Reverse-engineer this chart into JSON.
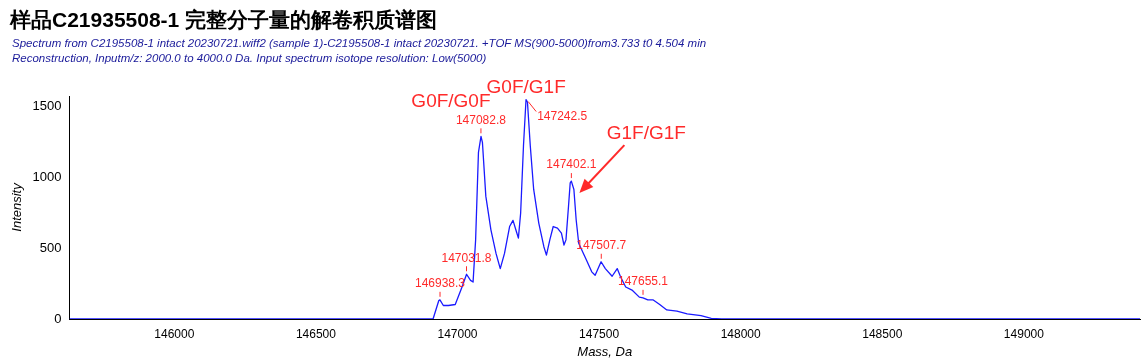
{
  "chart_data": {
    "type": "line",
    "title": "样品C21935508-1 完整分子量的解卷积质谱图",
    "subtitle": "Spectrum from C2195508-1 intact 20230721.wiff2 (sample 1)-C2195508-1 intact 20230721. +TOF MS(900-5000)from3.733 t0 4.504 min\nReconstruction, Inputm/z: 2000.0 to 4000.0 Da. Input spectrum isotope resolution: Low(5000)",
    "xlabel": "Mass, Da",
    "ylabel": "Intensity",
    "x": [
      145630,
      146877,
      146914,
      146934,
      146938,
      146950,
      146968,
      146992,
      147016,
      147032,
      147046,
      147055,
      147064,
      147074,
      147083,
      147088,
      147100,
      147118,
      147136,
      147151,
      147166,
      147184,
      147196,
      147206,
      147215,
      147223,
      147233,
      147242,
      147247,
      147257,
      147269,
      147287,
      147305,
      147314,
      147326,
      147338,
      147353,
      147367,
      147376,
      147383,
      147392,
      147398,
      147402,
      147411,
      147419,
      147428,
      147450,
      147474,
      147486,
      147507,
      147522,
      147546,
      147564,
      147576,
      147594,
      147618,
      147642,
      147655,
      147672,
      147690,
      147714,
      147739,
      147775,
      147811,
      147860,
      147896,
      147932,
      149410
    ],
    "series": [
      {
        "color": "#1a1aff",
        "values": [
          0,
          0,
          2,
          130,
          135,
          95,
          95,
          102,
          225,
          315,
          272,
          260,
          557,
          1173,
          1286,
          1244,
          865,
          628,
          462,
          355,
          462,
          651,
          694,
          628,
          569,
          746,
          1220,
          1545,
          1528,
          1220,
          912,
          675,
          509,
          450,
          557,
          651,
          640,
          604,
          521,
          557,
          794,
          959,
          971,
          912,
          699,
          533,
          438,
          332,
          308,
          403,
          355,
          301,
          355,
          296,
          225,
          201,
          154,
          149,
          135,
          135,
          102,
          64,
          55,
          36,
          24,
          5,
          0,
          0
        ]
      }
    ],
    "xlim": [
      145630,
      149410
    ],
    "xticks": [
      146000,
      146500,
      147000,
      147500,
      148000,
      148500,
      149000
    ],
    "ylim": [
      0,
      1570
    ],
    "yticks": [
      0,
      500,
      1000,
      1500
    ],
    "grid": false,
    "annotations": [
      {
        "text": "146938.3",
        "x": 146938.3,
        "y": 135
      },
      {
        "text": "147031.8",
        "x": 147031.8,
        "y": 315
      },
      {
        "text": "147082.8",
        "x": 147082.8,
        "y": 1286
      },
      {
        "text": "G0F/G0F",
        "x": 147082.8,
        "y": 1286
      },
      {
        "text": "147242.5",
        "x": 147242.5,
        "y": 1545
      },
      {
        "text": "G0F/G1F",
        "x": 147242.5,
        "y": 1545
      },
      {
        "text": "147402.1",
        "x": 147402.1,
        "y": 971
      },
      {
        "text": "G1F/G1F",
        "x": 147402.1,
        "y": 971
      },
      {
        "text": "147507.7",
        "x": 147507.7,
        "y": 403
      },
      {
        "text": "147655.1",
        "x": 147655.1,
        "y": 149
      }
    ]
  }
}
